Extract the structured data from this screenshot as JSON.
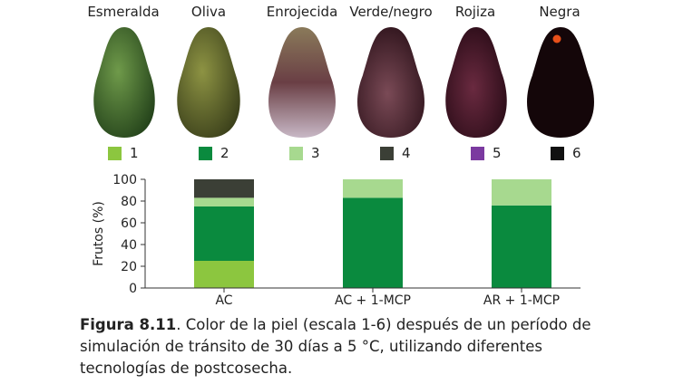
{
  "fruits": [
    {
      "label": "Esmeralda",
      "color": "#3d6a2c"
    },
    {
      "label": "Oliva",
      "color": "#5f6a2e"
    },
    {
      "label": "Enrojecida",
      "color": "#7a5a4c"
    },
    {
      "label": "Verde/negro",
      "color": "#4a2a30"
    },
    {
      "label": "Rojiza",
      "color": "#3a1020"
    },
    {
      "label": "Negra",
      "color": "#12060a"
    }
  ],
  "legend": [
    {
      "label": "1",
      "color": "#8cc63f"
    },
    {
      "label": "2",
      "color": "#0a8a3e"
    },
    {
      "label": "3",
      "color": "#a7d98f"
    },
    {
      "label": "4",
      "color": "#3b3f36"
    },
    {
      "label": "5",
      "color": "#7b3aa0"
    },
    {
      "label": "6",
      "color": "#111111"
    }
  ],
  "chart_data": {
    "type": "bar",
    "stacked": true,
    "ylabel": "Frutos (%)",
    "ylim": [
      0,
      100
    ],
    "yticks": [
      0,
      20,
      40,
      60,
      80,
      100
    ],
    "categories": [
      "AC",
      "AC + 1-MCP",
      "AR + 1-MCP"
    ],
    "series": [
      {
        "name": "1",
        "color": "#8cc63f",
        "values": [
          25,
          0,
          0
        ]
      },
      {
        "name": "2",
        "color": "#0a8a3e",
        "values": [
          50,
          83,
          76
        ]
      },
      {
        "name": "3",
        "color": "#a7d98f",
        "values": [
          8,
          17,
          24
        ]
      },
      {
        "name": "4",
        "color": "#3b3f36",
        "values": [
          17,
          0,
          0
        ]
      },
      {
        "name": "5",
        "color": "#7b3aa0",
        "values": [
          0,
          0,
          0
        ]
      },
      {
        "name": "6",
        "color": "#111111",
        "values": [
          0,
          0,
          0
        ]
      }
    ]
  },
  "caption": {
    "figure_label": "Figura 8.11",
    "text": ". Color de la piel (escala 1-6) después de un período de simulación de tránsito de 30 días a 5 °C, utilizando diferentes tecnologías de postcosecha."
  }
}
